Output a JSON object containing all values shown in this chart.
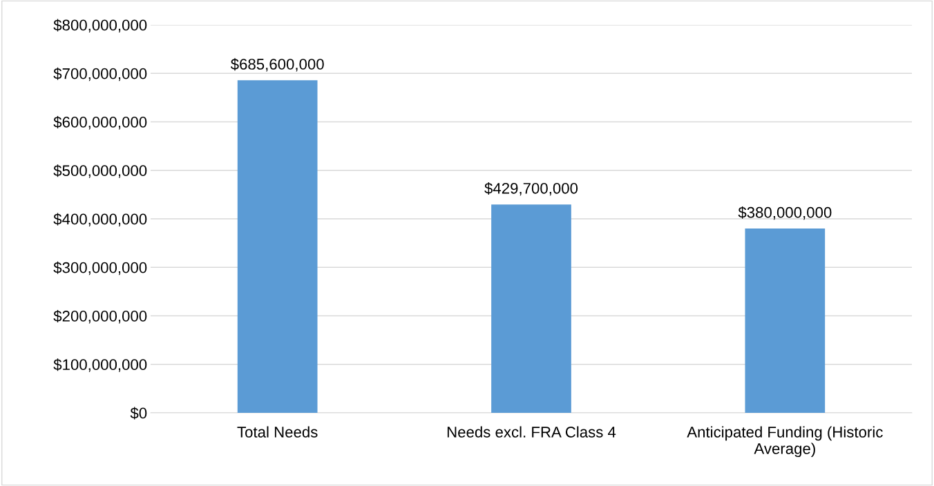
{
  "chart_data": {
    "type": "bar",
    "categories": [
      "Total Needs",
      "Needs excl. FRA Class 4",
      "Anticipated Funding (Historic Average)"
    ],
    "values": [
      685600000,
      429700000,
      380000000
    ],
    "value_labels": [
      "$685,600,000",
      "$429,700,000",
      "$380,000,000"
    ],
    "color": "#5b9bd5",
    "ylim": [
      0,
      800000000
    ],
    "yticks": [
      {
        "value": 0,
        "label": "$0"
      },
      {
        "value": 100000000,
        "label": "$100,000,000"
      },
      {
        "value": 200000000,
        "label": "$200,000,000"
      },
      {
        "value": 300000000,
        "label": "$300,000,000"
      },
      {
        "value": 400000000,
        "label": "$400,000,000"
      },
      {
        "value": 500000000,
        "label": "$500,000,000"
      },
      {
        "value": 600000000,
        "label": "$600,000,000"
      },
      {
        "value": 700000000,
        "label": "$700,000,000"
      },
      {
        "value": 800000000,
        "label": "$800,000,000"
      }
    ],
    "grid": "y"
  }
}
